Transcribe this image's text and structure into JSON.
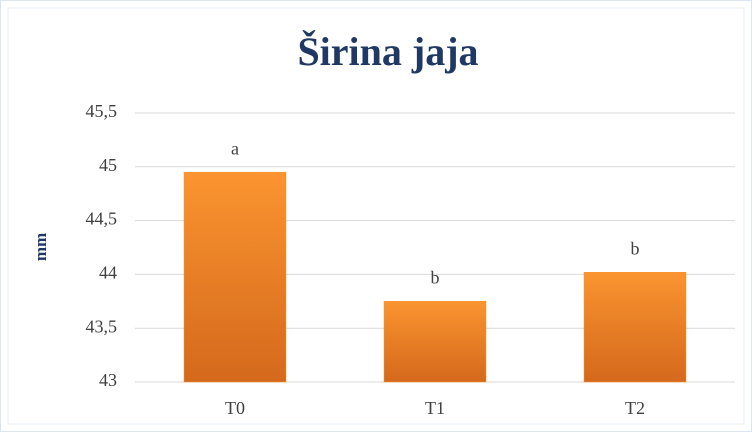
{
  "chart_data": {
    "type": "bar",
    "title": "Širina jaja",
    "y_label": "mm",
    "categories": [
      "T0",
      "T1",
      "T2"
    ],
    "values": [
      44.95,
      43.75,
      44.02
    ],
    "annotations": [
      "a",
      "b",
      "b"
    ],
    "color": "#f7922d",
    "ylim": [
      43,
      45.5
    ],
    "yticks": [
      43,
      {
        "value": 43.5,
        "label": "43,5"
      },
      44,
      {
        "value": 44.5,
        "label": "44,5"
      },
      45,
      {
        "value": 45.5,
        "label": "45,5"
      }
    ],
    "grid": true
  }
}
